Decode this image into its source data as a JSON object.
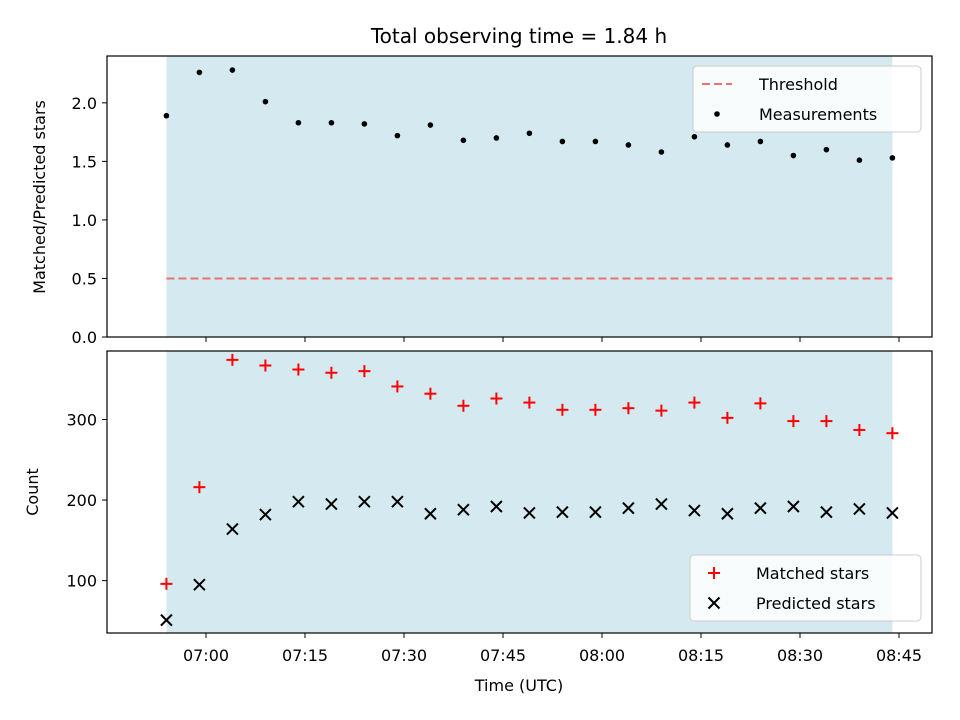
{
  "chart_data": [
    {
      "type": "scatter",
      "title": "Total observing time = 1.84 h",
      "ylabel": "Matched/Predicted stars",
      "xlabel": "",
      "ylim": [
        0,
        2.4
      ],
      "yticks": [
        "0.0",
        "0.5",
        "1.0",
        "1.5",
        "2.0"
      ],
      "shaded_span": [
        "06:54",
        "08:44"
      ],
      "shade_color": "#d4eaf0",
      "legend_position": "upper right",
      "threshold": {
        "name": "Threshold",
        "value": 0.5,
        "color": "#f07070",
        "style": "dashed"
      },
      "series": [
        {
          "name": "Measurements",
          "marker": "dot",
          "color": "#000000",
          "x": [
            "06:54",
            "06:59",
            "07:04",
            "07:09",
            "07:14",
            "07:19",
            "07:24",
            "07:29",
            "07:34",
            "07:39",
            "07:44",
            "07:49",
            "07:54",
            "07:59",
            "08:04",
            "08:09",
            "08:14",
            "08:19",
            "08:24",
            "08:29",
            "08:34",
            "08:39",
            "08:44"
          ],
          "values": [
            1.89,
            2.26,
            2.28,
            2.01,
            1.83,
            1.83,
            1.82,
            1.72,
            1.81,
            1.68,
            1.7,
            1.74,
            1.67,
            1.67,
            1.64,
            1.58,
            1.71,
            1.64,
            1.67,
            1.55,
            1.6,
            1.51,
            1.53
          ]
        }
      ]
    },
    {
      "type": "scatter",
      "title": "",
      "ylabel": "Count",
      "xlabel": "Time (UTC)",
      "ylim": [
        35,
        385
      ],
      "yticks": [
        "100",
        "200",
        "300"
      ],
      "xticks": [
        "07:00",
        "07:15",
        "07:30",
        "07:45",
        "08:00",
        "08:15",
        "08:30",
        "08:45"
      ],
      "shaded_span": [
        "06:54",
        "08:44"
      ],
      "shade_color": "#d4eaf0",
      "legend_position": "lower right",
      "series": [
        {
          "name": "Matched stars",
          "marker": "plus",
          "color": "#ff0000",
          "x": [
            "06:54",
            "06:59",
            "07:04",
            "07:09",
            "07:14",
            "07:19",
            "07:24",
            "07:29",
            "07:34",
            "07:39",
            "07:44",
            "07:49",
            "07:54",
            "07:59",
            "08:04",
            "08:09",
            "08:14",
            "08:19",
            "08:24",
            "08:29",
            "08:34",
            "08:39",
            "08:44"
          ],
          "values": [
            96,
            216,
            374,
            367,
            362,
            358,
            360,
            341,
            332,
            317,
            326,
            321,
            312,
            312,
            314,
            311,
            321,
            302,
            320,
            298,
            298,
            287,
            283
          ]
        },
        {
          "name": "Predicted stars",
          "marker": "x",
          "color": "#000000",
          "x": [
            "06:54",
            "06:59",
            "07:04",
            "07:09",
            "07:14",
            "07:19",
            "07:24",
            "07:29",
            "07:34",
            "07:39",
            "07:44",
            "07:49",
            "07:54",
            "07:59",
            "08:04",
            "08:09",
            "08:14",
            "08:19",
            "08:24",
            "08:29",
            "08:34",
            "08:39",
            "08:44"
          ],
          "values": [
            51,
            95,
            164,
            182,
            198,
            195,
            198,
            198,
            183,
            188,
            192,
            184,
            185,
            185,
            190,
            195,
            187,
            183,
            190,
            192,
            185,
            189,
            184
          ]
        }
      ]
    }
  ]
}
